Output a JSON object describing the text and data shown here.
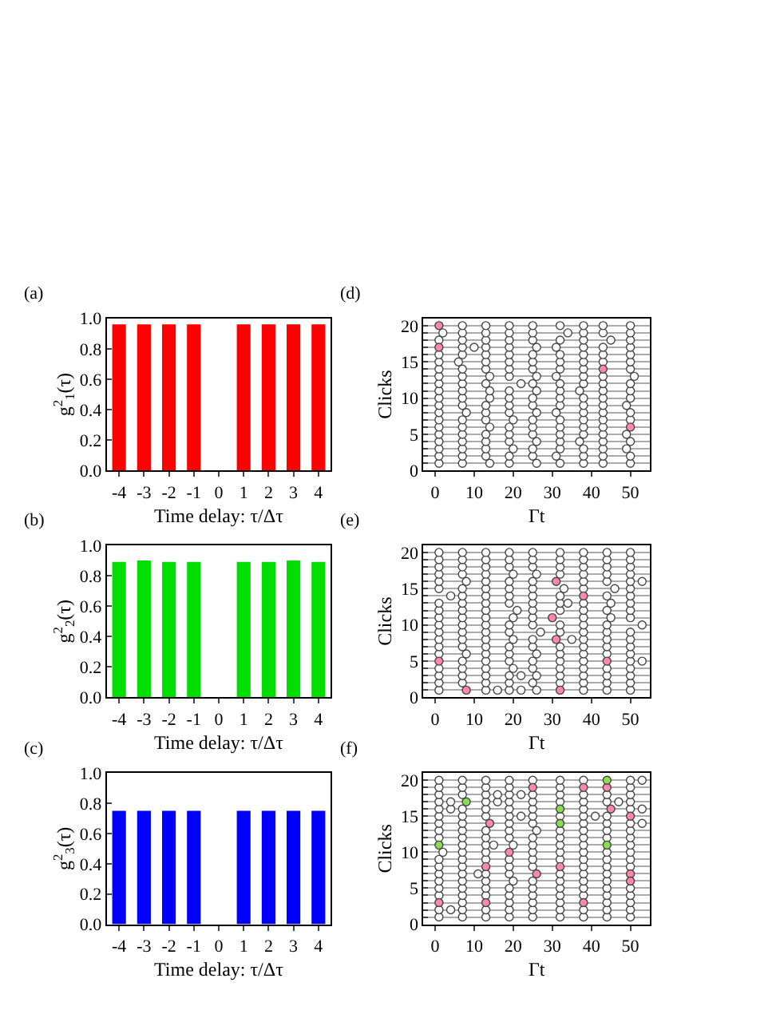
{
  "chart_data": [
    {
      "type": "bar",
      "annotations": [
        "(a)"
      ],
      "xlabel": "Time delay: τ/Δτ",
      "ylabel": "g$^{2}$$_{1}$(τ)",
      "categories": [
        "-4",
        "-3",
        "-2",
        "-1",
        "0",
        "1",
        "2",
        "3",
        "4"
      ],
      "values": [
        0.96,
        0.96,
        0.96,
        0.96,
        null,
        0.96,
        0.96,
        0.96,
        0.96
      ],
      "color": "#ff0000",
      "ylim": [
        0,
        1
      ],
      "yticks": [
        {
          "value": 0,
          "label": "0.0"
        },
        {
          "value": 0.2,
          "label": "0.2"
        },
        {
          "value": 0.4,
          "label": "0.4"
        },
        {
          "value": 0.6,
          "label": "0.6"
        },
        {
          "value": 0.8,
          "label": "0.8"
        },
        {
          "value": 1,
          "label": "1.0"
        }
      ]
    },
    {
      "type": "scatter",
      "annotations": [
        "(d)"
      ],
      "xlabel": "Γt",
      "ylabel": "Clicks",
      "marker": "circle",
      "grid": "y",
      "xlim": [
        -3,
        55
      ],
      "xticks": [
        0,
        10,
        20,
        30,
        40,
        50
      ],
      "ylim": [
        0,
        21
      ],
      "yticks": [
        0,
        {
          "value": 1,
          "label": null
        },
        {
          "value": 2,
          "label": null
        },
        {
          "value": 3,
          "label": null
        },
        {
          "value": 4,
          "label": null
        },
        5,
        {
          "value": 6,
          "label": null
        },
        {
          "value": 7,
          "label": null
        },
        {
          "value": 8,
          "label": null
        },
        {
          "value": 9,
          "label": null
        },
        10,
        {
          "value": 11,
          "label": null
        },
        {
          "value": 12,
          "label": null
        },
        {
          "value": 13,
          "label": null
        },
        {
          "value": 14,
          "label": null
        },
        15,
        {
          "value": 16,
          "label": null
        },
        {
          "value": 17,
          "label": null
        },
        {
          "value": 18,
          "label": null
        },
        {
          "value": 19,
          "label": null
        },
        20
      ],
      "series": [
        {
          "color": "#ffffff",
          "x": [
            1,
            7,
            14,
            19,
            26,
            32,
            38,
            43,
            50
          ],
          "values": [
            1,
            1,
            1,
            1,
            1,
            1,
            1,
            1,
            1
          ]
        },
        {
          "color": "#ffffff",
          "x": [
            1,
            7,
            13,
            19,
            25,
            31,
            38,
            43,
            50
          ],
          "values": [
            2,
            2,
            2,
            2,
            2,
            2,
            2,
            2,
            2
          ]
        },
        {
          "color": "#ffffff",
          "x": [
            1,
            7,
            13,
            20,
            25,
            32,
            38,
            43,
            49
          ],
          "values": [
            3,
            3,
            3,
            3,
            3,
            3,
            3,
            3,
            3
          ]
        },
        {
          "color": "#ffffff",
          "x": [
            1,
            7,
            13,
            19,
            26,
            32,
            37,
            43,
            50
          ],
          "values": [
            4,
            4,
            4,
            4,
            4,
            4,
            4,
            4,
            4
          ]
        },
        {
          "color": "#ffffff",
          "x": [
            1,
            7,
            13,
            19,
            25,
            32,
            38,
            43,
            49
          ],
          "values": [
            5,
            5,
            5,
            5,
            5,
            5,
            5,
            5,
            5
          ]
        },
        {
          "color": "#ffffff",
          "x": [
            1,
            7,
            14,
            19,
            25,
            32,
            38,
            43
          ],
          "values": [
            6,
            6,
            6,
            6,
            6,
            6,
            6,
            6
          ]
        },
        {
          "color": "#ffffff",
          "x": [
            1,
            7,
            13,
            20,
            25,
            32,
            38,
            43,
            50
          ],
          "values": [
            7,
            7,
            7,
            7,
            7,
            7,
            7,
            7,
            7
          ]
        },
        {
          "color": "#ffffff",
          "x": [
            1,
            8,
            13,
            19,
            26,
            31,
            38,
            43,
            50
          ],
          "values": [
            8,
            8,
            8,
            8,
            8,
            8,
            8,
            8,
            8
          ]
        },
        {
          "color": "#ffffff",
          "x": [
            1,
            7,
            13,
            19,
            25,
            32,
            38,
            43,
            49
          ],
          "values": [
            9,
            9,
            9,
            9,
            9,
            9,
            9,
            9,
            9
          ]
        },
        {
          "color": "#ffffff",
          "x": [
            1,
            7,
            14,
            19,
            25,
            32,
            38,
            43,
            50
          ],
          "values": [
            10,
            10,
            10,
            10,
            10,
            10,
            10,
            10,
            10
          ]
        },
        {
          "color": "#ffffff",
          "x": [
            1,
            7,
            14,
            19,
            26,
            32,
            37,
            43,
            50
          ],
          "values": [
            11,
            11,
            11,
            11,
            11,
            11,
            11,
            11,
            11
          ]
        },
        {
          "color": "#ffffff",
          "x": [
            1,
            7,
            13,
            22,
            25,
            32,
            38,
            43,
            50
          ],
          "values": [
            12,
            12,
            12,
            12,
            12,
            12,
            12,
            12,
            12
          ]
        },
        {
          "color": "#ffffff",
          "x": [
            1,
            7,
            14,
            19,
            26,
            31,
            38,
            43,
            51
          ],
          "values": [
            13,
            13,
            13,
            13,
            13,
            13,
            13,
            13,
            13
          ]
        },
        {
          "color": "#ffffff",
          "x": [
            1,
            7,
            13,
            19,
            25,
            32,
            38,
            50
          ],
          "values": [
            14,
            14,
            14,
            14,
            14,
            14,
            14,
            14
          ]
        },
        {
          "color": "#ffffff",
          "x": [
            1,
            6,
            13,
            19,
            25,
            32,
            38,
            43,
            50
          ],
          "values": [
            15,
            15,
            15,
            15,
            15,
            15,
            15,
            15,
            15
          ]
        },
        {
          "color": "#ffffff",
          "x": [
            1,
            7,
            13,
            19,
            25,
            32,
            38,
            43,
            50
          ],
          "values": [
            16,
            16,
            16,
            16,
            16,
            16,
            16,
            16,
            16
          ]
        },
        {
          "color": "#ffffff",
          "x": [
            7,
            10,
            13,
            19,
            26,
            31,
            38,
            43,
            50
          ],
          "values": [
            17,
            17,
            17,
            17,
            17,
            17,
            17,
            17,
            17
          ]
        },
        {
          "color": "#ffffff",
          "x": [
            1,
            7,
            13,
            19,
            25,
            32,
            38,
            45,
            50
          ],
          "values": [
            18,
            18,
            18,
            18,
            18,
            18,
            18,
            18,
            18
          ]
        },
        {
          "color": "#ffffff",
          "x": [
            2,
            7,
            13,
            19,
            25,
            34,
            38,
            43,
            50
          ],
          "values": [
            19,
            19,
            19,
            19,
            19,
            19,
            19,
            19,
            19
          ]
        },
        {
          "color": "#ffffff",
          "x": [
            7,
            13,
            19,
            25,
            32,
            38,
            43,
            50
          ],
          "values": [
            20,
            20,
            20,
            20,
            20,
            20,
            20,
            20
          ]
        },
        {
          "color": "#ff88aa",
          "x": [
            1,
            1,
            43,
            50
          ],
          "values": [
            20,
            17,
            14,
            6
          ]
        }
      ]
    },
    {
      "type": "bar",
      "annotations": [
        "(b)"
      ],
      "xlabel": "Time delay: τ/Δτ",
      "ylabel": "g$^{2}$$_{2}$(τ)",
      "categories": [
        "-4",
        "-3",
        "-2",
        "-1",
        "0",
        "1",
        "2",
        "3",
        "4"
      ],
      "values": [
        0.89,
        0.9,
        0.89,
        0.89,
        null,
        0.89,
        0.89,
        0.9,
        0.89
      ],
      "color": "#00dd00",
      "ylim": [
        0,
        1
      ],
      "yticks": [
        {
          "value": 0,
          "label": "0.0"
        },
        {
          "value": 0.2,
          "label": "0.2"
        },
        {
          "value": 0.4,
          "label": "0.4"
        },
        {
          "value": 0.6,
          "label": "0.6"
        },
        {
          "value": 0.8,
          "label": "0.8"
        },
        {
          "value": 1,
          "label": "1.0"
        }
      ]
    },
    {
      "type": "scatter",
      "annotations": [
        "(e)"
      ],
      "xlabel": "Γt",
      "ylabel": "Clicks",
      "marker": "circle",
      "grid": "y",
      "xlim": [
        -3,
        55
      ],
      "xticks": [
        0,
        10,
        20,
        30,
        40,
        50
      ],
      "ylim": [
        0,
        21
      ],
      "yticks": [
        0,
        {
          "value": 1,
          "label": null
        },
        {
          "value": 2,
          "label": null
        },
        {
          "value": 3,
          "label": null
        },
        {
          "value": 4,
          "label": null
        },
        5,
        {
          "value": 6,
          "label": null
        },
        {
          "value": 7,
          "label": null
        },
        {
          "value": 8,
          "label": null
        },
        {
          "value": 9,
          "label": null
        },
        10,
        {
          "value": 11,
          "label": null
        },
        {
          "value": 12,
          "label": null
        },
        {
          "value": 13,
          "label": null
        },
        {
          "value": 14,
          "label": null
        },
        15,
        {
          "value": 16,
          "label": null
        },
        {
          "value": 17,
          "label": null
        },
        {
          "value": 18,
          "label": null
        },
        {
          "value": 19,
          "label": null
        },
        20
      ],
      "series": [
        {
          "color": "#ffffff",
          "x": [
            1,
            13,
            16,
            19,
            22,
            26,
            38,
            44,
            50
          ],
          "values": [
            1,
            1,
            1,
            1,
            1,
            1,
            1,
            1,
            1
          ]
        },
        {
          "color": "#ffffff",
          "x": [
            1,
            7,
            13,
            19,
            25,
            32,
            38,
            44,
            50
          ],
          "values": [
            2,
            2,
            2,
            2,
            2,
            2,
            2,
            2,
            2
          ]
        },
        {
          "color": "#ffffff",
          "x": [
            1,
            7,
            13,
            19,
            22,
            26,
            32,
            38,
            44,
            50
          ],
          "values": [
            3,
            3,
            3,
            3,
            3,
            3,
            3,
            3,
            3,
            3
          ]
        },
        {
          "color": "#ffffff",
          "x": [
            1,
            7,
            13,
            20,
            25,
            32,
            38,
            44,
            50
          ],
          "values": [
            4,
            4,
            4,
            4,
            4,
            4,
            4,
            4,
            4
          ]
        },
        {
          "color": "#ffffff",
          "x": [
            7,
            13,
            19,
            25,
            32,
            38,
            50,
            53
          ],
          "values": [
            5,
            5,
            5,
            5,
            5,
            5,
            5,
            5
          ]
        },
        {
          "color": "#ffffff",
          "x": [
            1,
            8,
            13,
            19,
            26,
            32,
            38,
            44,
            50
          ],
          "values": [
            6,
            6,
            6,
            6,
            6,
            6,
            6,
            6,
            6
          ]
        },
        {
          "color": "#ffffff",
          "x": [
            1,
            7,
            13,
            19,
            25,
            32,
            38,
            44,
            50
          ],
          "values": [
            7,
            7,
            7,
            7,
            7,
            7,
            7,
            7,
            7
          ]
        },
        {
          "color": "#ffffff",
          "x": [
            1,
            7,
            13,
            20,
            25,
            35,
            38,
            44,
            50
          ],
          "values": [
            8,
            8,
            8,
            8,
            8,
            8,
            8,
            8,
            8
          ]
        },
        {
          "color": "#ffffff",
          "x": [
            1,
            7,
            13,
            19,
            27,
            32,
            38,
            44,
            50
          ],
          "values": [
            9,
            9,
            9,
            9,
            9,
            9,
            9,
            9,
            9
          ]
        },
        {
          "color": "#ffffff",
          "x": [
            1,
            7,
            13,
            19,
            25,
            32,
            38,
            44,
            53
          ],
          "values": [
            10,
            10,
            10,
            10,
            10,
            10,
            10,
            10,
            10
          ]
        },
        {
          "color": "#ffffff",
          "x": [
            1,
            7,
            13,
            20,
            25,
            38,
            45,
            50
          ],
          "values": [
            11,
            11,
            11,
            11,
            11,
            11,
            11,
            11
          ]
        },
        {
          "color": "#ffffff",
          "x": [
            1,
            7,
            13,
            21,
            25,
            32,
            38,
            44,
            50
          ],
          "values": [
            12,
            12,
            12,
            12,
            12,
            12,
            12,
            12,
            12
          ]
        },
        {
          "color": "#ffffff",
          "x": [
            1,
            7,
            13,
            19,
            25,
            32,
            34,
            38,
            45,
            50
          ],
          "values": [
            13,
            13,
            13,
            13,
            13,
            13,
            13,
            13,
            13,
            13
          ]
        },
        {
          "color": "#ffffff",
          "x": [
            4,
            7,
            13,
            19,
            25,
            32,
            44,
            50
          ],
          "values": [
            14,
            14,
            14,
            14,
            14,
            14,
            14,
            14
          ]
        },
        {
          "color": "#ffffff",
          "x": [
            1,
            7,
            13,
            19,
            25,
            33,
            38,
            46,
            50
          ],
          "values": [
            15,
            15,
            15,
            15,
            15,
            15,
            15,
            15,
            15
          ]
        },
        {
          "color": "#ffffff",
          "x": [
            1,
            8,
            13,
            19,
            25,
            38,
            44,
            50,
            53
          ],
          "values": [
            16,
            16,
            16,
            16,
            16,
            16,
            16,
            16,
            16
          ]
        },
        {
          "color": "#ffffff",
          "x": [
            1,
            7,
            13,
            20,
            26,
            32,
            38,
            44,
            50
          ],
          "values": [
            17,
            17,
            17,
            17,
            17,
            17,
            17,
            17,
            17
          ]
        },
        {
          "color": "#ffffff",
          "x": [
            1,
            7,
            13,
            19,
            25,
            32,
            38,
            44,
            50
          ],
          "values": [
            18,
            18,
            18,
            18,
            18,
            18,
            18,
            18,
            18
          ]
        },
        {
          "color": "#ffffff",
          "x": [
            1,
            7,
            13,
            19,
            25,
            32,
            38,
            44,
            50
          ],
          "values": [
            19,
            19,
            19,
            19,
            19,
            19,
            19,
            19,
            19
          ]
        },
        {
          "color": "#ffffff",
          "x": [
            1,
            7,
            13,
            19,
            25,
            32,
            38,
            44,
            50
          ],
          "values": [
            20,
            20,
            20,
            20,
            20,
            20,
            20,
            20,
            20
          ]
        },
        {
          "color": "#ff88aa",
          "x": [
            1,
            8,
            31,
            38,
            30,
            31,
            44,
            32
          ],
          "values": [
            5,
            1,
            16,
            14,
            11,
            8,
            5,
            1
          ]
        }
      ]
    },
    {
      "type": "bar",
      "annotations": [
        "(c)"
      ],
      "xlabel": "Time delay: τ/Δτ",
      "ylabel": "g$^{2}$$_{3}$(τ)",
      "categories": [
        "-4",
        "-3",
        "-2",
        "-1",
        "0",
        "1",
        "2",
        "3",
        "4"
      ],
      "values": [
        0.75,
        0.75,
        0.75,
        0.75,
        null,
        0.75,
        0.75,
        0.75,
        0.75
      ],
      "color": "#0000ff",
      "ylim": [
        0,
        1
      ],
      "yticks": [
        {
          "value": 0,
          "label": "0.0"
        },
        {
          "value": 0.2,
          "label": "0.2"
        },
        {
          "value": 0.4,
          "label": "0.4"
        },
        {
          "value": 0.6,
          "label": "0.6"
        },
        {
          "value": 0.8,
          "label": "0.8"
        },
        {
          "value": 1,
          "label": "1.0"
        }
      ]
    },
    {
      "type": "scatter",
      "annotations": [
        "(f)"
      ],
      "xlabel": "Γt",
      "ylabel": "Clicks",
      "marker": "circle",
      "grid": "y",
      "xlim": [
        -3,
        55
      ],
      "xticks": [
        0,
        10,
        20,
        30,
        40,
        50
      ],
      "ylim": [
        0,
        21
      ],
      "yticks": [
        0,
        {
          "value": 1,
          "label": null
        },
        {
          "value": 2,
          "label": null
        },
        {
          "value": 3,
          "label": null
        },
        {
          "value": 4,
          "label": null
        },
        5,
        {
          "value": 6,
          "label": null
        },
        {
          "value": 7,
          "label": null
        },
        {
          "value": 8,
          "label": null
        },
        {
          "value": 9,
          "label": null
        },
        10,
        {
          "value": 11,
          "label": null
        },
        {
          "value": 12,
          "label": null
        },
        {
          "value": 13,
          "label": null
        },
        {
          "value": 14,
          "label": null
        },
        15,
        {
          "value": 16,
          "label": null
        },
        {
          "value": 17,
          "label": null
        },
        {
          "value": 18,
          "label": null
        },
        {
          "value": 19,
          "label": null
        },
        20
      ],
      "series": [
        {
          "color": "#ffffff",
          "x": [
            1,
            7,
            13,
            19,
            25,
            32,
            38,
            44,
            50
          ],
          "values": [
            1,
            1,
            1,
            1,
            1,
            1,
            1,
            1,
            1
          ]
        },
        {
          "color": "#ffffff",
          "x": [
            1,
            4,
            7,
            13,
            19,
            25,
            32,
            38,
            44,
            50
          ],
          "values": [
            2,
            2,
            2,
            2,
            2,
            2,
            2,
            2,
            2,
            2
          ]
        },
        {
          "color": "#ffffff",
          "x": [
            7,
            19,
            25,
            32,
            44,
            50
          ],
          "values": [
            3,
            3,
            3,
            3,
            3,
            3
          ]
        },
        {
          "color": "#ffffff",
          "x": [
            1,
            7,
            13,
            19,
            25,
            32,
            38,
            44,
            50
          ],
          "values": [
            4,
            4,
            4,
            4,
            4,
            4,
            4,
            4,
            4
          ]
        },
        {
          "color": "#ffffff",
          "x": [
            1,
            7,
            13,
            19,
            25,
            32,
            38,
            44,
            50
          ],
          "values": [
            5,
            5,
            5,
            5,
            5,
            5,
            5,
            5,
            5
          ]
        },
        {
          "color": "#ffffff",
          "x": [
            1,
            7,
            13,
            20,
            25,
            32,
            38,
            44
          ],
          "values": [
            6,
            6,
            6,
            6,
            6,
            6,
            6,
            6
          ]
        },
        {
          "color": "#ffffff",
          "x": [
            1,
            7,
            11,
            13,
            19,
            32,
            38,
            44
          ],
          "values": [
            7,
            7,
            7,
            7,
            7,
            7,
            7,
            7
          ]
        },
        {
          "color": "#ffffff",
          "x": [
            1,
            7,
            19,
            25,
            38,
            44,
            50
          ],
          "values": [
            8,
            8,
            8,
            8,
            8,
            8,
            8
          ]
        },
        {
          "color": "#ffffff",
          "x": [
            1,
            7,
            13,
            19,
            25,
            32,
            38,
            44,
            50
          ],
          "values": [
            9,
            9,
            9,
            9,
            9,
            9,
            9,
            9,
            9
          ]
        },
        {
          "color": "#ffffff",
          "x": [
            2,
            7,
            13,
            25,
            32,
            38,
            44,
            50
          ],
          "values": [
            10,
            10,
            10,
            10,
            10,
            10,
            10,
            10
          ]
        },
        {
          "color": "#ffffff",
          "x": [
            7,
            13,
            15,
            20,
            25,
            32,
            38,
            50
          ],
          "values": [
            11,
            11,
            11,
            11,
            11,
            11,
            11,
            11
          ]
        },
        {
          "color": "#ffffff",
          "x": [
            1,
            7,
            13,
            19,
            25,
            32,
            38,
            44,
            50
          ],
          "values": [
            12,
            12,
            12,
            12,
            12,
            12,
            12,
            12,
            12
          ]
        },
        {
          "color": "#ffffff",
          "x": [
            1,
            7,
            13,
            19,
            26,
            32,
            38,
            44,
            50
          ],
          "values": [
            13,
            13,
            13,
            13,
            13,
            13,
            13,
            13,
            13
          ]
        },
        {
          "color": "#ffffff",
          "x": [
            1,
            7,
            19,
            25,
            38,
            44,
            50,
            53
          ],
          "values": [
            14,
            14,
            14,
            14,
            14,
            14,
            14,
            14
          ]
        },
        {
          "color": "#ffffff",
          "x": [
            1,
            7,
            13,
            19,
            22,
            25,
            32,
            38,
            41,
            44
          ],
          "values": [
            15,
            15,
            15,
            15,
            15,
            15,
            15,
            15,
            15,
            15
          ]
        },
        {
          "color": "#ffffff",
          "x": [
            1,
            4,
            7,
            13,
            19,
            25,
            38,
            50,
            53
          ],
          "values": [
            16,
            16,
            16,
            16,
            16,
            16,
            16,
            16,
            16
          ]
        },
        {
          "color": "#ffffff",
          "x": [
            1,
            4,
            13,
            16,
            19,
            25,
            32,
            38,
            44,
            47,
            50
          ],
          "values": [
            17,
            17,
            17,
            17,
            17,
            17,
            17,
            17,
            17,
            17,
            17
          ]
        },
        {
          "color": "#ffffff",
          "x": [
            1,
            7,
            13,
            16,
            19,
            22,
            25,
            32,
            38,
            44,
            50
          ],
          "values": [
            18,
            18,
            18,
            18,
            18,
            18,
            18,
            18,
            18,
            18,
            18
          ]
        },
        {
          "color": "#ffffff",
          "x": [
            1,
            7,
            13,
            19,
            32,
            50
          ],
          "values": [
            19,
            19,
            19,
            19,
            19,
            19
          ]
        },
        {
          "color": "#ffffff",
          "x": [
            1,
            7,
            13,
            19,
            25,
            32,
            38,
            50,
            53
          ],
          "values": [
            20,
            20,
            20,
            20,
            20,
            20,
            20,
            20,
            20
          ]
        },
        {
          "color": "#ff88aa",
          "x": [
            25,
            38,
            44,
            45,
            50,
            14,
            19,
            13,
            26,
            32,
            50,
            50,
            1,
            13,
            38
          ],
          "values": [
            19,
            19,
            19,
            16,
            15,
            14,
            10,
            8,
            7,
            8,
            7,
            6,
            3,
            3,
            3
          ]
        },
        {
          "color": "#88dd55",
          "x": [
            44,
            8,
            32,
            32,
            1,
            44
          ],
          "values": [
            20,
            17,
            16,
            14,
            11,
            11
          ]
        }
      ]
    }
  ]
}
